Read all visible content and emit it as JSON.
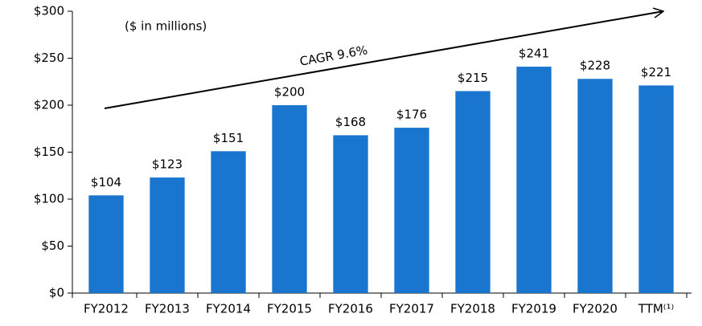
{
  "chart_data": {
    "type": "bar",
    "annotations": [
      "($ in millions)",
      "CAGR 9.6%"
    ],
    "categories": [
      "FY2012",
      "FY2013",
      "FY2014",
      "FY2015",
      "FY2016",
      "FY2017",
      "FY2018",
      "FY2019",
      "FY2020",
      "TTM⁽¹⁾"
    ],
    "values": [
      104,
      123,
      151,
      200,
      168,
      176,
      215,
      241,
      228,
      221
    ],
    "value_labels": [
      "$104",
      "$123",
      "$151",
      "$200",
      "$168",
      "$176",
      "$215",
      "$241",
      "$228",
      "$221"
    ],
    "color": "#1a75cf",
    "ylim": [
      0,
      300
    ],
    "yticks": [
      {
        "value": 0,
        "label": "$0"
      },
      {
        "value": 50,
        "label": "$50"
      },
      {
        "value": 100,
        "label": "$100"
      },
      {
        "value": 150,
        "label": "$150"
      },
      {
        "value": 200,
        "label": "$200"
      },
      {
        "value": 250,
        "label": "$250"
      },
      {
        "value": 300,
        "label": "$300"
      }
    ],
    "grid": false
  }
}
